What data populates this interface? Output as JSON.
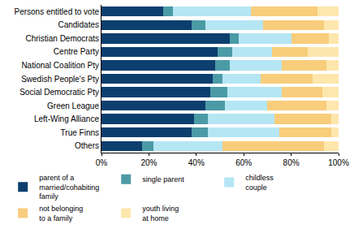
{
  "chart_data": {
    "type": "bar",
    "orientation": "horizontal",
    "stacked": true,
    "grid": false,
    "legend": "bottom",
    "categories": [
      "Persons entitled to vote",
      "Candidates",
      "Christian Democrats",
      "Centre Party",
      "National Coalition Pty",
      "Swedish People's Pty",
      "Social Democratic Pty",
      "Green League",
      "Left-Wing Alliance",
      "True Finns",
      "Others"
    ],
    "series": [
      {
        "name": "parent of a married/cohabiting family",
        "color": "#0d3f6e",
        "values": [
          26,
          38,
          54,
          49,
          48,
          47,
          46,
          44,
          39,
          38,
          17
        ]
      },
      {
        "name": "single parent",
        "color": "#4b9ba6",
        "values": [
          4,
          6,
          4,
          6,
          6,
          4,
          7,
          8,
          6,
          7,
          5
        ]
      },
      {
        "name": "childless couple",
        "color": "#b5e6f4",
        "values": [
          33,
          24,
          22,
          17,
          22,
          16,
          23,
          18,
          28,
          30,
          29
        ]
      },
      {
        "name": "not belonging to a family",
        "color": "#f8cd7c",
        "values": [
          28,
          26,
          16,
          15,
          19,
          22,
          17,
          25,
          24,
          22,
          43
        ]
      },
      {
        "name": "youth living at home",
        "color": "#fde7ad",
        "values": [
          9,
          6,
          4,
          13,
          5,
          11,
          7,
          5,
          3,
          3,
          6
        ]
      }
    ],
    "xlim": [
      0,
      100
    ],
    "xticks": [
      {
        "value": 0,
        "label": "0%"
      },
      {
        "value": 20,
        "label": "20%"
      },
      {
        "value": 40,
        "label": "40%"
      },
      {
        "value": 60,
        "label": "60%"
      },
      {
        "value": 80,
        "label": "80%"
      },
      {
        "value": 100,
        "label": "100%"
      }
    ]
  }
}
